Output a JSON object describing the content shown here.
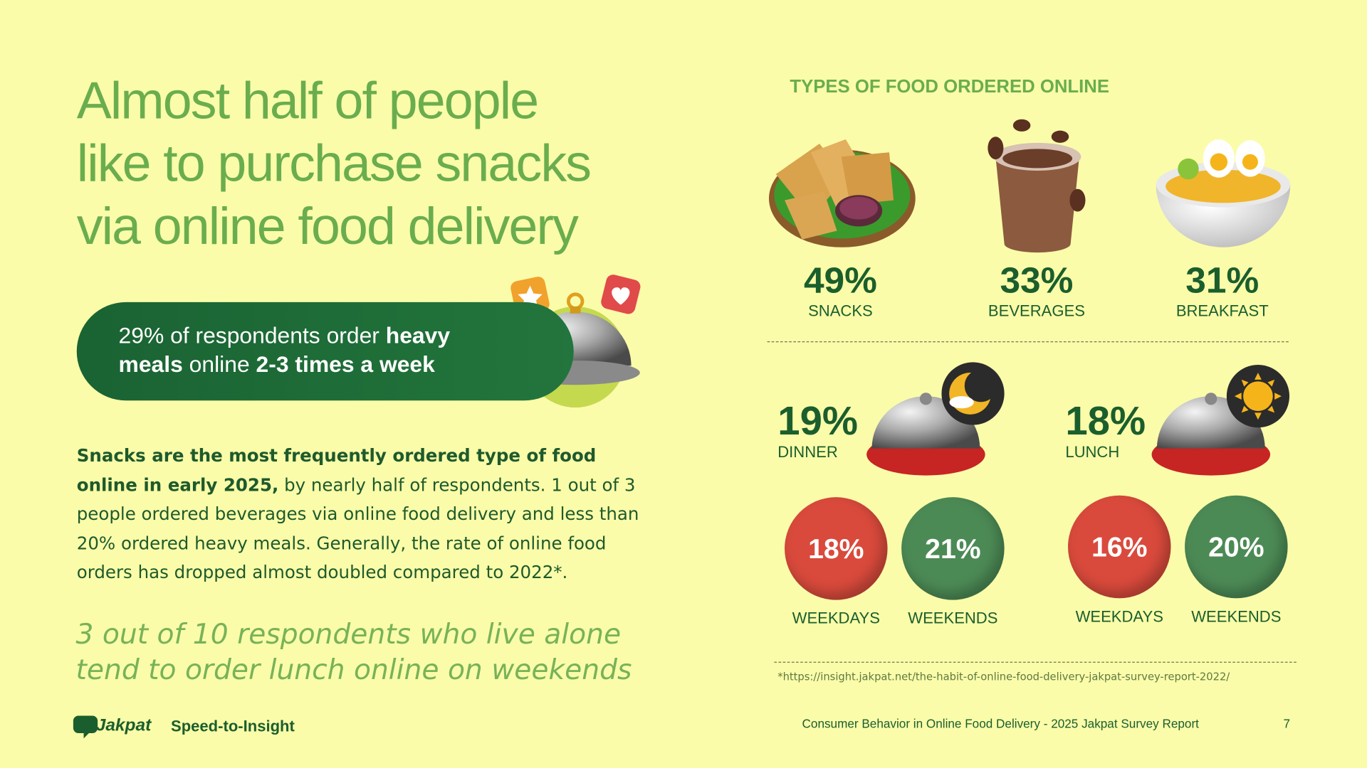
{
  "headline": {
    "lines": [
      "Almost half of people",
      "like to purchase snacks",
      "via online food delivery"
    ]
  },
  "banner": {
    "segments": [
      {
        "text": "29% of respondents order",
        "bold": false
      },
      {
        "text": "heavy meals",
        "bold": true
      },
      {
        "text": "online",
        "bold": false
      },
      {
        "text": "2-3 times a week",
        "bold": true
      }
    ]
  },
  "body": {
    "segments": [
      {
        "text": "Snacks are the most frequently ordered type of food online in early 2025,",
        "bold": true
      },
      {
        "text": "by nearly half of respondents. 1 out of 3 people ordered beverages via online food delivery and less than 20% ordered heavy meals. Generally, the rate of online food orders has dropped almost doubled compared to 2022*.",
        "bold": false
      }
    ]
  },
  "quote": {
    "lines": [
      "3 out of 10 respondents who live alone",
      "tend to order lunch online on weekends"
    ]
  },
  "types": {
    "title": "TYPES OF FOOD ORDERED ONLINE",
    "items": [
      {
        "value": "49%",
        "label": "SNACKS"
      },
      {
        "value": "33%",
        "label": "BEVERAGES"
      },
      {
        "value": "31%",
        "label": "BREAKFAST"
      }
    ]
  },
  "meals": [
    {
      "value": "19%",
      "label": "DINNER",
      "weekdays": {
        "value": "18%",
        "label": "WEEKDAYS"
      },
      "weekends": {
        "value": "21%",
        "label": "WEEKENDS"
      }
    },
    {
      "value": "18%",
      "label": "LUNCH",
      "weekdays": {
        "value": "16%",
        "label": "WEEKDAYS"
      },
      "weekends": {
        "value": "20%",
        "label": "WEEKENDS"
      }
    }
  ],
  "source": "*https://insight.jakpat.net/the-habit-of-online-food-delivery-jakpat-survey-report-2022/",
  "footer": {
    "brand": "Jakpat",
    "tagline": "Speed-to-Insight",
    "report": "Consumer Behavior in Online Food Delivery - 2025 Jakpat Survey Report",
    "page": "7"
  }
}
